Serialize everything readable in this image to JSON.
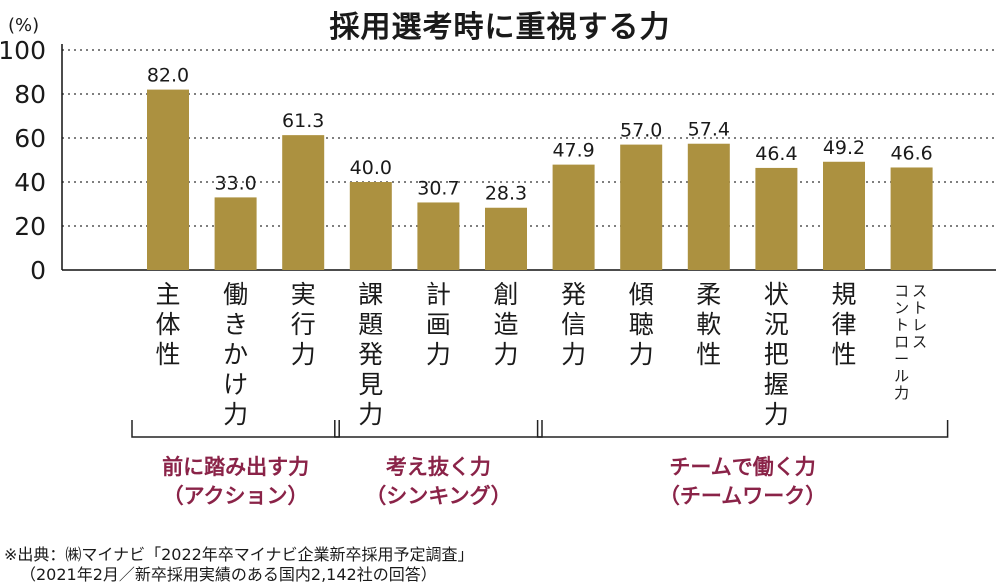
{
  "title": "採用選考時に重視する力",
  "unit_label": "(%)",
  "colors": {
    "bar": "#ac9140",
    "group_text": "#8a2348",
    "text": "#1a1a1a",
    "grid": "#333333"
  },
  "chart_data": {
    "type": "bar",
    "title": "採用選考時に重視する力",
    "ylabel": "(%)",
    "ylim": [
      0,
      100
    ],
    "yticks": [
      0,
      20,
      40,
      60,
      80,
      100
    ],
    "grid": "dotted horizontal",
    "categories": [
      "主体性",
      "働きかけ力",
      "実行力",
      "課題発見力",
      "計画力",
      "創造力",
      "発信力",
      "傾聴力",
      "柔軟性",
      "状況把握力",
      "規律性",
      "ストレスコントロール力"
    ],
    "values": [
      82.0,
      33.0,
      61.3,
      40.0,
      30.7,
      28.3,
      47.9,
      57.0,
      57.4,
      46.4,
      49.2,
      46.6
    ],
    "value_labels": [
      "82.0",
      "33.0",
      "61.3",
      "40.0",
      "30.7",
      "28.3",
      "47.9",
      "57.0",
      "57.4",
      "46.4",
      "49.2",
      "46.6"
    ],
    "groups": [
      {
        "line1": "前に踏み出す力",
        "line2": "（アクション）",
        "first": 0,
        "last": 2
      },
      {
        "line1": "考え抜く力",
        "line2": "（シンキング）",
        "first": 3,
        "last": 5
      },
      {
        "line1": "チームで働く力",
        "line2": "（チームワーク）",
        "first": 6,
        "last": 11
      }
    ]
  },
  "source": {
    "line1": "※出典：㈱マイナビ「2022年卒マイナビ企業新卒採用予定調査」",
    "line2": "（2021年2月／新卒採用実績のある国内2,142社の回答）"
  }
}
